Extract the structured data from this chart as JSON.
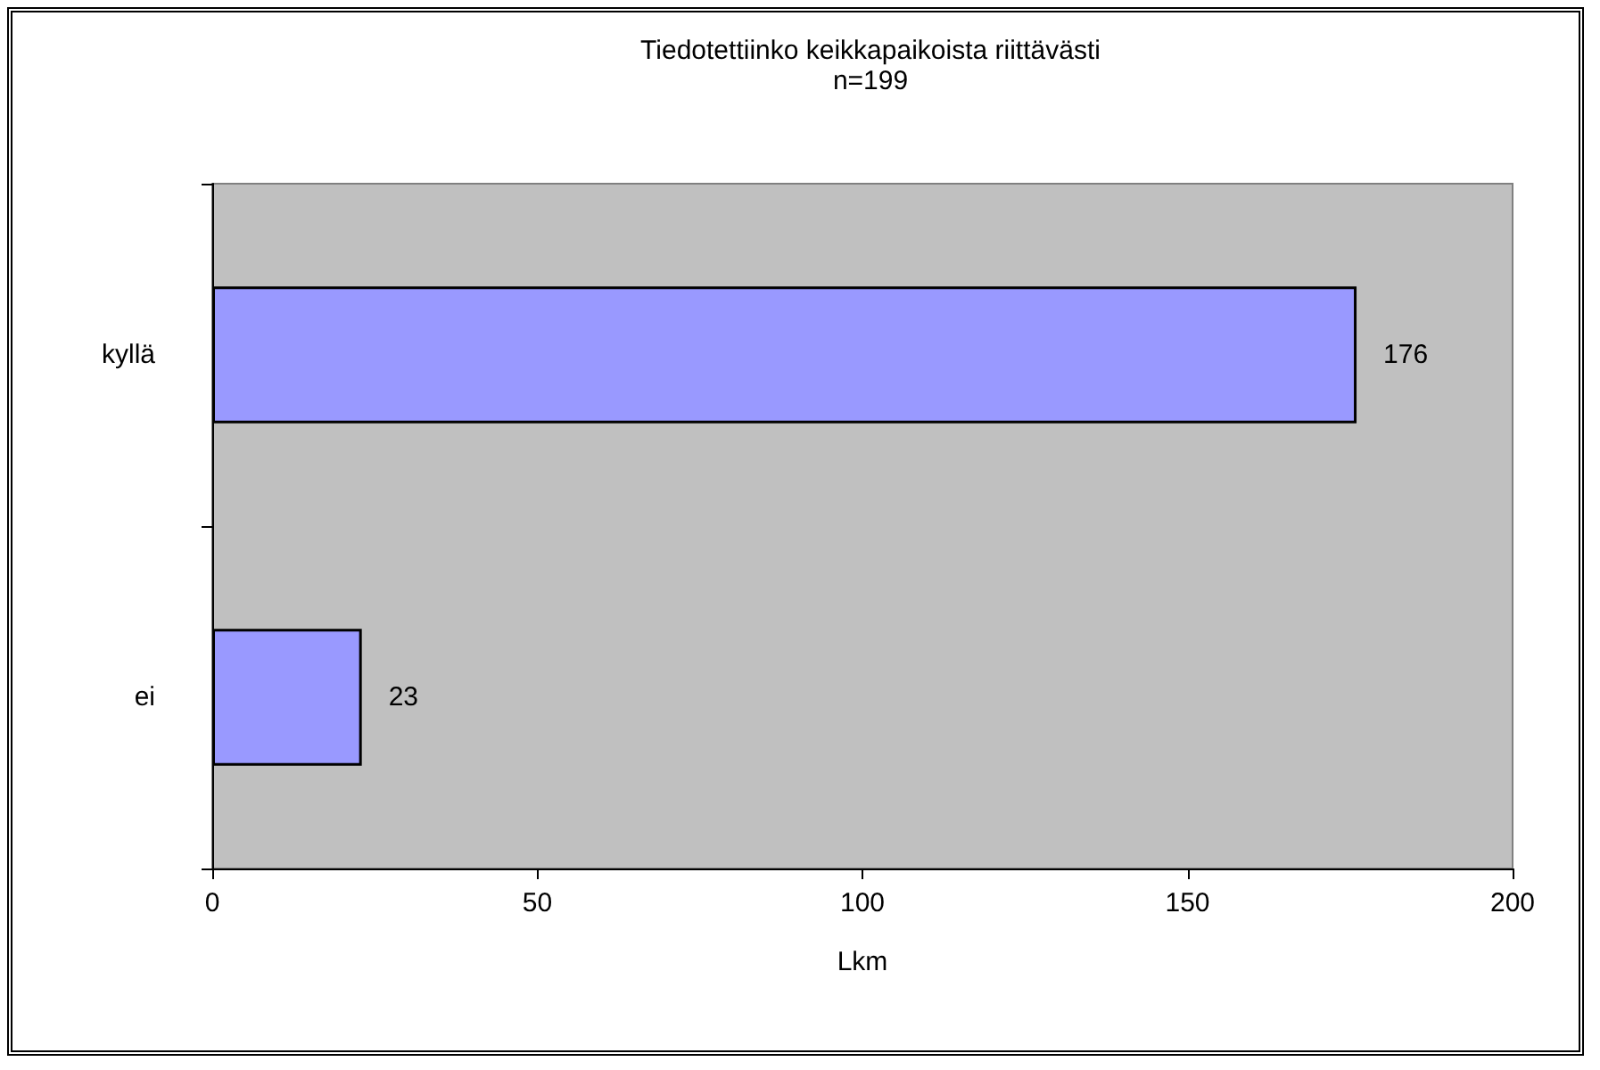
{
  "chart_data": {
    "type": "bar",
    "orientation": "horizontal",
    "title": "Tiedotettiinko keikkapaikoista riittävästi",
    "subtitle": "n=199",
    "xlabel": "Lkm",
    "categories": [
      "kyllä",
      "ei"
    ],
    "values": [
      176,
      23
    ],
    "color": "#9999ff",
    "xlim": [
      0,
      200
    ],
    "xticks": [
      0,
      50,
      100,
      150,
      200
    ],
    "grid": false,
    "data_labels": true
  }
}
